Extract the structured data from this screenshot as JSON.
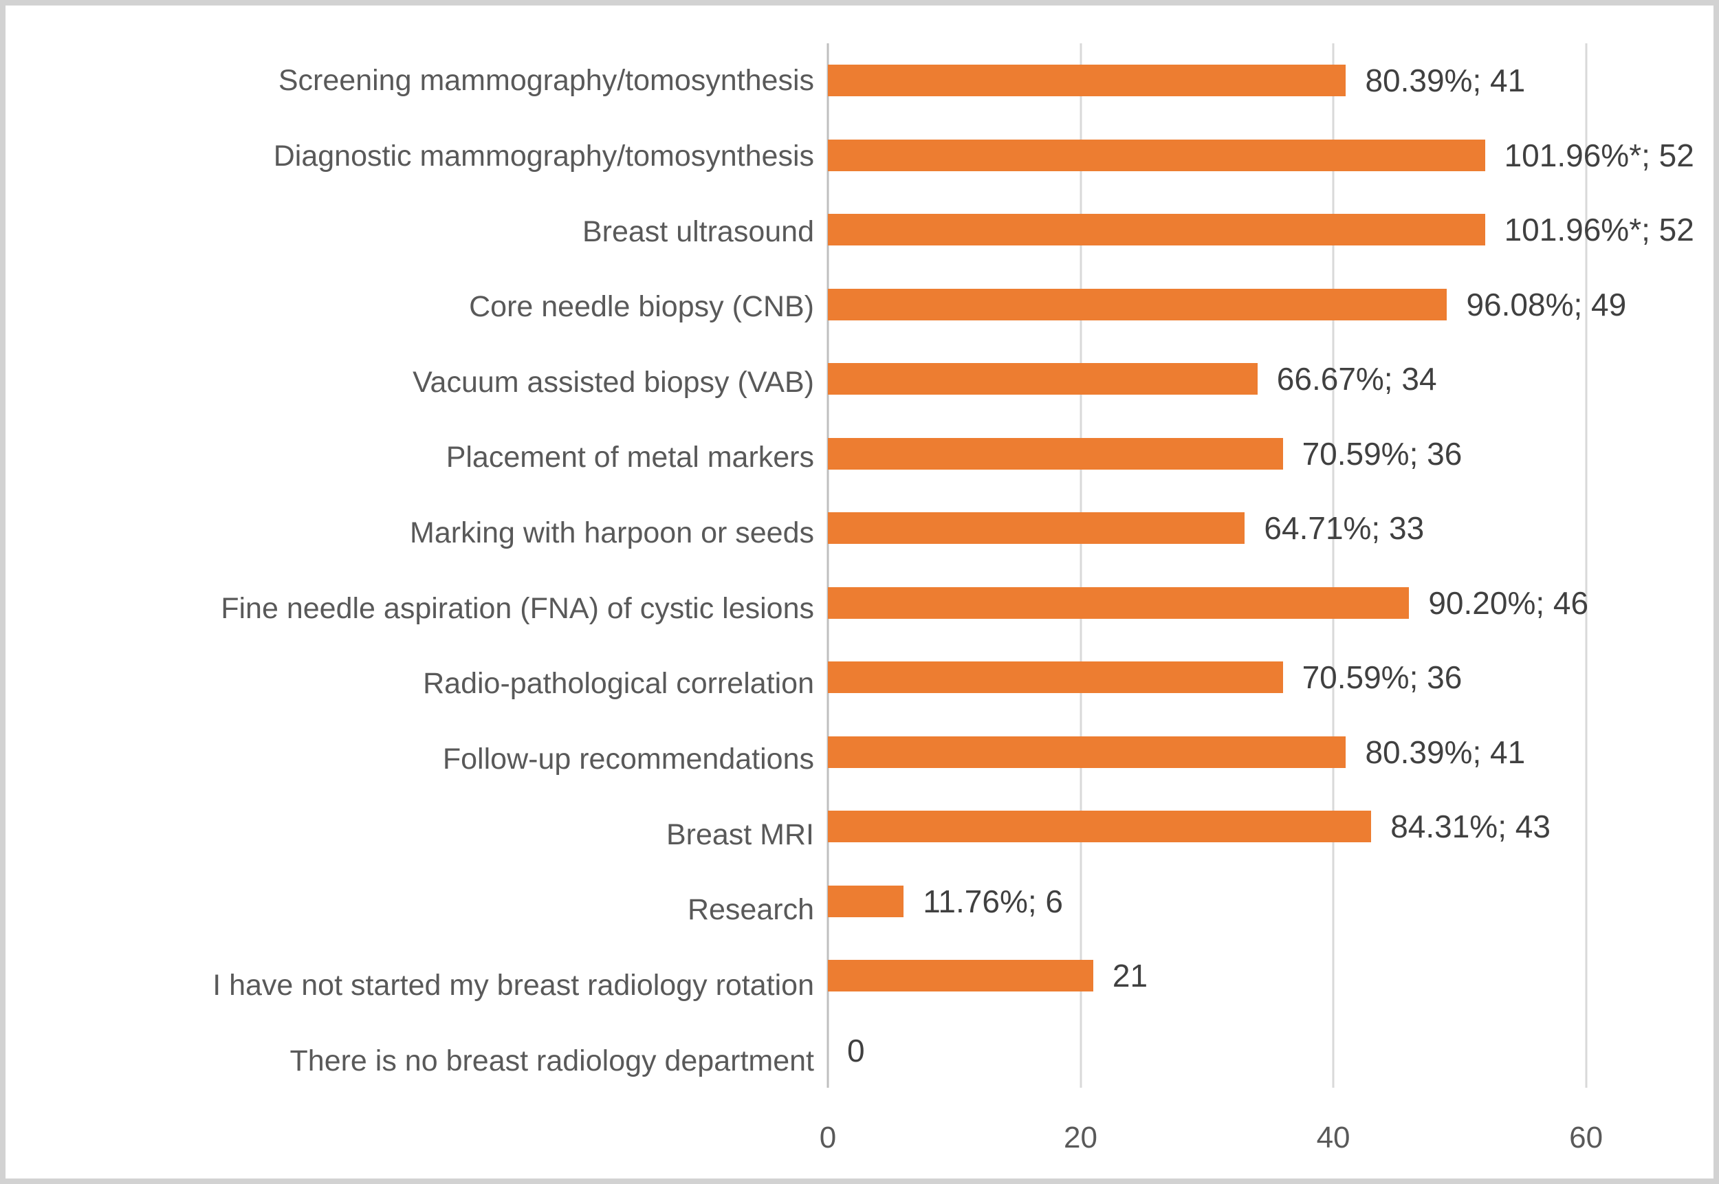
{
  "chart_data": {
    "type": "bar",
    "orientation": "horizontal",
    "title": "",
    "xlabel": "",
    "ylabel": "",
    "grid": "vertical",
    "legend": "none",
    "bar_color": "#ED7D31",
    "xlim": [
      0,
      60
    ],
    "x_plot_max": 69,
    "xticks": [
      0,
      20,
      40,
      60
    ],
    "categories": [
      "Screening mammography/tomosynthesis",
      "Diagnostic mammography/tomosynthesis",
      "Breast ultrasound",
      "Core needle biopsy (CNB)",
      "Vacuum assisted biopsy (VAB)",
      "Placement of metal markers",
      "Marking with harpoon or seeds",
      "Fine needle aspiration (FNA) of cystic lesions",
      "Radio-pathological correlation",
      "Follow-up recommendations",
      "Breast MRI",
      "Research",
      "I have not started my breast radiology rotation",
      "There is no breast radiology department"
    ],
    "values": [
      41,
      52,
      52,
      49,
      34,
      36,
      33,
      46,
      36,
      41,
      43,
      6,
      21,
      0
    ],
    "percentages": [
      "80.39%",
      "101.96%*",
      "101.96%*",
      "96.08%",
      "66.67%",
      "70.59%",
      "64.71%",
      "90.20%",
      "70.59%",
      "80.39%",
      "84.31%",
      "11.76%",
      null,
      null
    ],
    "data_labels": [
      "80.39%; 41",
      "101.96%*; 52",
      "101.96%*; 52",
      "96.08%; 49",
      "66.67%; 34",
      "70.59%; 36",
      "64.71%; 33",
      "90.20%; 46",
      "70.59%; 36",
      "80.39%; 41",
      "84.31%; 43",
      "11.76%; 6",
      "21",
      "0"
    ]
  }
}
